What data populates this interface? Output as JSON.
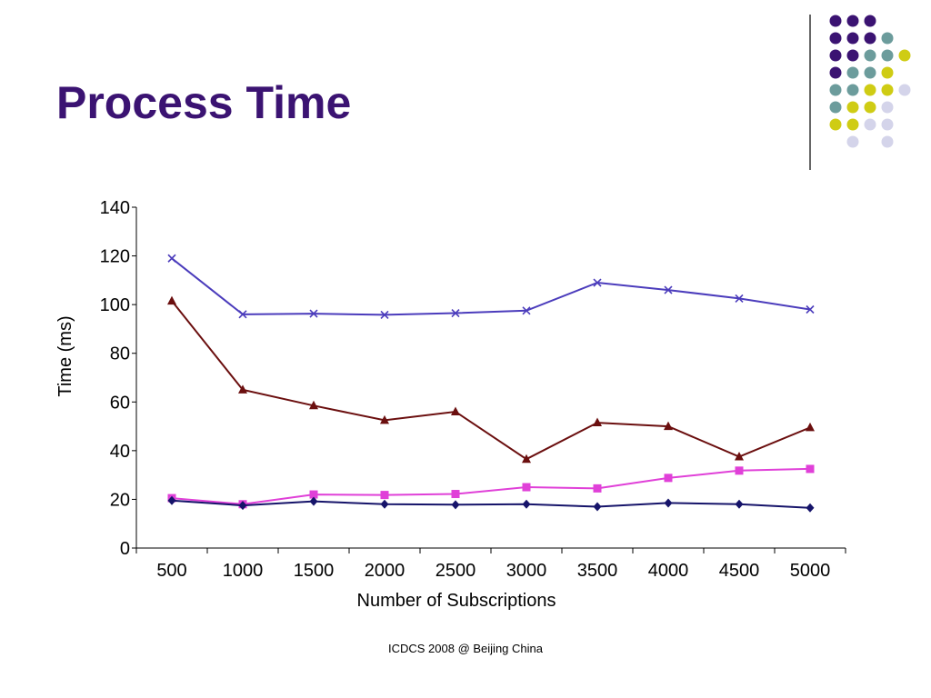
{
  "slide": {
    "title": "Process Time",
    "footer": "ICDCS 2008 @ Beijing China"
  },
  "decoration": {
    "name": "dot-grid-decoration",
    "colors": {
      "purple": "#3b1372",
      "teal": "#6c9c9c",
      "yellow": "#cfcc14",
      "lavender": "#d4d4ea"
    },
    "rows": [
      [
        "purple",
        "purple",
        "purple",
        "none",
        "none"
      ],
      [
        "purple",
        "purple",
        "purple",
        "teal",
        "none"
      ],
      [
        "purple",
        "purple",
        "teal",
        "teal",
        "yellow"
      ],
      [
        "purple",
        "teal",
        "teal",
        "yellow",
        "none"
      ],
      [
        "teal",
        "teal",
        "yellow",
        "yellow",
        "lavender"
      ],
      [
        "teal",
        "yellow",
        "yellow",
        "lavender",
        "none"
      ],
      [
        "yellow",
        "yellow",
        "lavender",
        "lavender",
        "none"
      ],
      [
        "none",
        "lavender",
        "none",
        "lavender",
        "none"
      ]
    ]
  },
  "chart_data": {
    "type": "line",
    "title": "",
    "xlabel": "Number of Subscriptions",
    "ylabel": "Time (ms)",
    "categories": [
      "500",
      "1000",
      "1500",
      "2000",
      "2500",
      "3000",
      "3500",
      "4000",
      "4500",
      "5000"
    ],
    "ylim": [
      0,
      140
    ],
    "yticks": [
      0,
      20,
      40,
      60,
      80,
      100,
      120,
      140
    ],
    "grid": false,
    "legend": "none",
    "series": [
      {
        "color": "#4b3cbc",
        "marker": "x",
        "values": [
          119,
          96,
          96.3,
          95.8,
          96.5,
          97.5,
          109,
          106,
          102.5,
          98
        ]
      },
      {
        "color": "#6b0f0f",
        "marker": "triangle",
        "values": [
          101.5,
          65,
          58.5,
          52.5,
          56,
          36.5,
          51.5,
          50,
          37.5,
          49.5
        ]
      },
      {
        "color": "#e040d8",
        "marker": "square",
        "values": [
          20.5,
          18,
          22,
          21.8,
          22.2,
          25,
          24.5,
          28.8,
          31.8,
          32.5
        ]
      },
      {
        "color": "#16146a",
        "marker": "diamond",
        "values": [
          19.5,
          17.5,
          19.2,
          18,
          17.8,
          18,
          17,
          18.5,
          18,
          16.5
        ]
      }
    ]
  }
}
